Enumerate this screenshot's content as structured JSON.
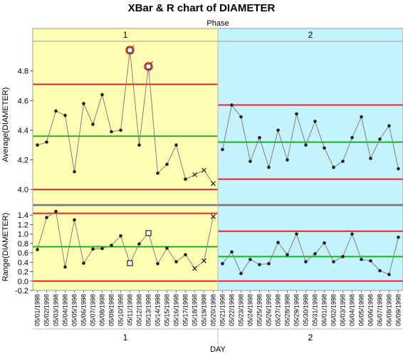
{
  "chart_data": {
    "type": "line",
    "title": "XBar & R chart of DIAMETER",
    "phase_header": "Phase",
    "xlabel": "DAY",
    "phases": [
      {
        "label": "1",
        "start": 0,
        "end": 19,
        "background": "#ffffb3"
      },
      {
        "label": "2",
        "start": 20,
        "end": 39,
        "background": "#c4f3fb"
      }
    ],
    "categories": [
      "05/01/1998",
      "05/02/1998",
      "05/03/1998",
      "05/04/1998",
      "05/05/1998",
      "05/06/1998",
      "05/07/1998",
      "05/08/1998",
      "05/09/1998",
      "05/10/1998",
      "05/11/1998",
      "05/12/1998",
      "05/13/1998",
      "05/14/1998",
      "05/15/1998",
      "05/16/1998",
      "05/17/1998",
      "05/18/1998",
      "05/19/1998",
      "05/20/1998",
      "05/21/1998",
      "05/22/1998",
      "05/23/1998",
      "05/24/1998",
      "05/25/1998",
      "05/26/1998",
      "05/27/1998",
      "05/28/1998",
      "05/29/1998",
      "05/30/1998",
      "05/31/1998",
      "06/01/1998",
      "06/02/1998",
      "06/03/1998",
      "06/04/1998",
      "06/05/1998",
      "06/06/1998",
      "06/07/1998",
      "06/08/1998",
      "06/09/1998"
    ],
    "xbar": {
      "ylabel": "Average(DIAMETER)",
      "ylim": [
        3.9,
        5.0
      ],
      "yticks": [
        4.0,
        4.2,
        4.4,
        4.6,
        4.8
      ],
      "values": [
        4.3,
        4.32,
        4.53,
        4.5,
        4.12,
        4.58,
        4.44,
        4.64,
        4.39,
        4.4,
        4.94,
        4.3,
        4.83,
        4.11,
        4.17,
        4.3,
        4.07,
        4.1,
        4.13,
        4.04,
        4.27,
        4.57,
        4.49,
        4.19,
        4.35,
        4.15,
        4.4,
        4.2,
        4.51,
        4.3,
        4.46,
        4.28,
        4.15,
        4.19,
        4.35,
        4.49,
        4.21,
        4.34,
        4.43,
        4.14
      ],
      "markers": [
        "dot",
        "dot",
        "dot",
        "dot",
        "dot",
        "dot",
        "dot",
        "dot",
        "dot",
        "dot",
        "square",
        "dot",
        "square",
        "dot",
        "dot",
        "dot",
        "dot",
        "x",
        "x",
        "x",
        "dot",
        "dot",
        "dot",
        "dot",
        "dot",
        "dot",
        "dot",
        "dot",
        "dot",
        "dot",
        "dot",
        "dot",
        "dot",
        "dot",
        "dot",
        "dot",
        "dot",
        "dot",
        "dot",
        "dot"
      ],
      "flagged": [
        10,
        12
      ],
      "limits": [
        {
          "phase": 0,
          "ucl": 4.71,
          "center": 4.36,
          "lcl": 4.0
        },
        {
          "phase": 1,
          "ucl": 4.57,
          "center": 4.32,
          "lcl": 4.07
        }
      ]
    },
    "range": {
      "ylabel": "Range(DIAMETER)",
      "ylim": [
        -0.2,
        1.6
      ],
      "yticks": [
        -0.2,
        0.0,
        0.2,
        0.4,
        0.6,
        0.8,
        1.0,
        1.2,
        1.4
      ],
      "values": [
        0.67,
        1.35,
        1.48,
        0.3,
        1.3,
        0.38,
        0.68,
        0.69,
        0.76,
        0.96,
        0.38,
        0.79,
        1.02,
        0.37,
        0.7,
        0.41,
        0.56,
        0.27,
        0.43,
        1.37,
        0.37,
        0.62,
        0.16,
        0.46,
        0.35,
        0.37,
        0.82,
        0.56,
        1.0,
        0.41,
        0.58,
        0.81,
        0.41,
        0.52,
        1.0,
        0.46,
        0.43,
        0.22,
        0.14,
        0.93
      ],
      "markers": [
        "dot",
        "dot",
        "dot",
        "dot",
        "dot",
        "dot",
        "dot",
        "dot",
        "dot",
        "dot",
        "square",
        "dot",
        "square",
        "dot",
        "dot",
        "dot",
        "dot",
        "x",
        "x",
        "x",
        "dot",
        "dot",
        "dot",
        "dot",
        "dot",
        "dot",
        "dot",
        "dot",
        "dot",
        "dot",
        "dot",
        "dot",
        "dot",
        "dot",
        "dot",
        "dot",
        "dot",
        "dot",
        "dot",
        "dot"
      ],
      "limits": [
        {
          "phase": 0,
          "ucl": 1.44,
          "center": 0.73,
          "lcl": 0.0
        },
        {
          "phase": 1,
          "ucl": 1.06,
          "center": 0.52,
          "lcl": 0.0
        }
      ]
    },
    "colors": {
      "ucl_lcl": "#e8232a",
      "center": "#17b31f",
      "series": "#7f7f7f",
      "marker": "#222222",
      "flag": "#d62728"
    },
    "grid": false,
    "legend": "none"
  }
}
